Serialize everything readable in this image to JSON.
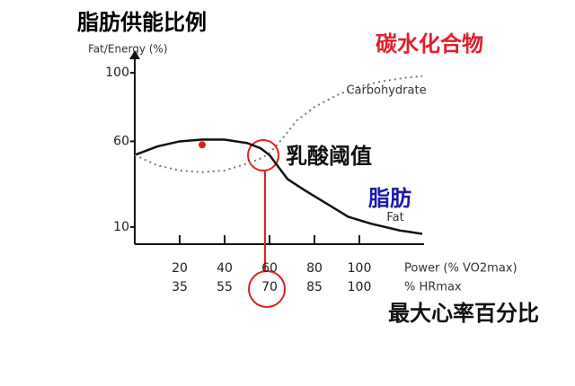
{
  "chart_data": {
    "type": "line",
    "title": "脂肪供能比例",
    "y_label": "Fat/Energy (%)",
    "x_label": "Power (% VO2max)",
    "x2_label": "% HRmax",
    "annotations": [
      "碳水化合物",
      "乳酸阈值",
      "脂肪",
      "最大心率百分比"
    ],
    "xlim": [
      0,
      128
    ],
    "ylim": [
      0,
      110
    ],
    "xticks": [
      20,
      40,
      60,
      80,
      100
    ],
    "x2ticks": [
      {
        "value": 20,
        "label": "35"
      },
      {
        "value": 40,
        "label": "55"
      },
      {
        "value": 60,
        "label": "70"
      },
      {
        "value": 80,
        "label": "85"
      },
      {
        "value": 100,
        "label": "100"
      }
    ],
    "yticks": [
      10,
      60,
      100
    ],
    "series": [
      {
        "name": "Fat",
        "color": "#111111",
        "style": "solid",
        "x": [
          0,
          10,
          20,
          30,
          40,
          50,
          56,
          60,
          64,
          68,
          75,
          85,
          95,
          105,
          118,
          128
        ],
        "values": [
          52,
          57,
          60,
          61,
          61,
          59,
          56,
          52,
          45,
          38,
          32,
          24,
          16,
          12,
          8,
          6
        ]
      },
      {
        "name": "Carbohydrate",
        "color": "#777777",
        "style": "dotted",
        "x": [
          0,
          10,
          20,
          30,
          40,
          50,
          56,
          60,
          66,
          72,
          80,
          90,
          100,
          110,
          120,
          128
        ],
        "values": [
          52,
          46,
          43,
          42,
          43,
          47,
          50,
          53,
          62,
          72,
          80,
          87,
          92,
          95,
          97,
          98
        ]
      }
    ],
    "marker": {
      "x": 30,
      "y": 58,
      "color": "#e02020"
    }
  }
}
